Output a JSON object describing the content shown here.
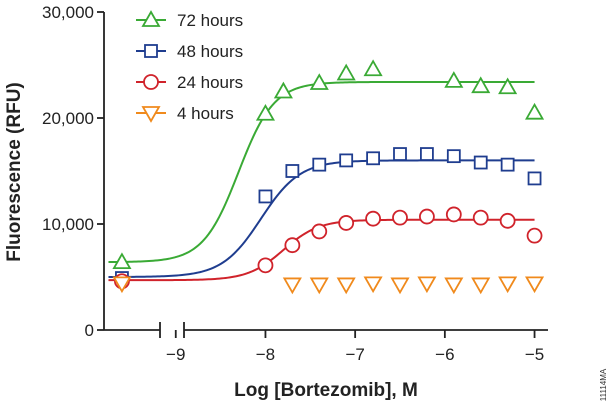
{
  "chart_data": {
    "type": "scatter",
    "xlabel": "Log [Bortezomib], M",
    "ylabel": "Fluorescence (RFU)",
    "xlim": [
      -9.8,
      -4.85
    ],
    "ylim": [
      0,
      30000
    ],
    "x_ticks": [
      -9,
      -8,
      -7,
      -6,
      -5
    ],
    "x_tick_labels": [
      "−9",
      "−8",
      "−7",
      "−6",
      "−5"
    ],
    "y_ticks": [
      0,
      10000,
      20000,
      30000
    ],
    "y_tick_labels": [
      "0",
      "10,000",
      "20,000",
      "30,000"
    ],
    "x_axis_break": true,
    "legend_position": "top-left",
    "corner_code": "11114MA",
    "series": [
      {
        "name": "72 hours",
        "color": "#3aaa35",
        "marker": "triangle-up",
        "x": [
          -9.6,
          -8.0,
          -7.8,
          -7.4,
          -7.1,
          -6.8,
          -5.9,
          -5.6,
          -5.3,
          -5.0
        ],
        "y": [
          6400,
          20400,
          22500,
          23300,
          24200,
          24600,
          23500,
          23000,
          22900,
          20500
        ],
        "curve": {
          "bottom": 6400,
          "top": 23400,
          "logec50": -8.3,
          "hill": 2.2
        }
      },
      {
        "name": "48 hours",
        "color": "#1f3d8f",
        "marker": "square",
        "x": [
          -9.6,
          -8.0,
          -7.7,
          -7.4,
          -7.1,
          -6.8,
          -6.5,
          -6.2,
          -5.9,
          -5.6,
          -5.3,
          -5.0
        ],
        "y": [
          4900,
          12600,
          15000,
          15600,
          16000,
          16200,
          16600,
          16600,
          16400,
          15800,
          15600,
          14300
        ],
        "curve": {
          "bottom": 5000,
          "top": 16000,
          "logec50": -8.05,
          "hill": 2.0
        }
      },
      {
        "name": "24 hours",
        "color": "#d0232b",
        "marker": "circle",
        "x": [
          -9.6,
          -8.0,
          -7.7,
          -7.4,
          -7.1,
          -6.8,
          -6.5,
          -6.2,
          -5.9,
          -5.6,
          -5.3,
          -5.0
        ],
        "y": [
          4600,
          6100,
          8000,
          9300,
          10100,
          10500,
          10600,
          10700,
          10900,
          10600,
          10300,
          8900
        ],
        "curve": {
          "bottom": 4700,
          "top": 10400,
          "logec50": -7.8,
          "hill": 2.2
        }
      },
      {
        "name": "4 hours",
        "color": "#f08a1c",
        "marker": "triangle-down",
        "x": [
          -9.6,
          -7.7,
          -7.4,
          -7.1,
          -6.8,
          -6.5,
          -6.2,
          -5.9,
          -5.6,
          -5.3,
          -5.0
        ],
        "y": [
          4400,
          4300,
          4300,
          4300,
          4400,
          4300,
          4400,
          4300,
          4300,
          4400,
          4400
        ]
      }
    ]
  }
}
